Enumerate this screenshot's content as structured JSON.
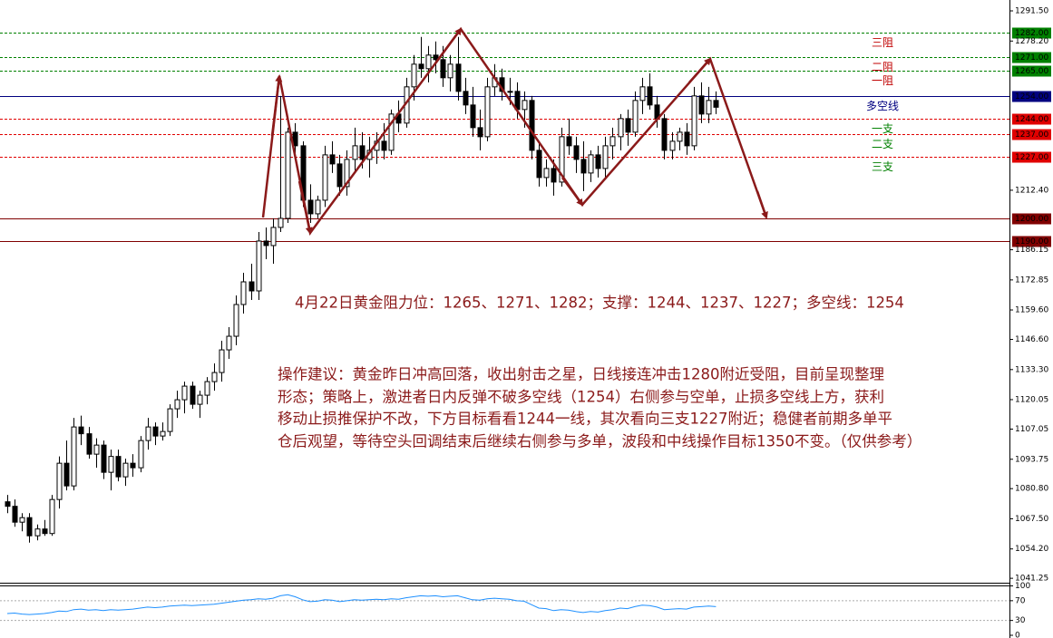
{
  "chart_data": {
    "type": "candlestick",
    "candles": [
      [
        1075,
        1078,
        1070,
        1073
      ],
      [
        1073,
        1076,
        1064,
        1066
      ],
      [
        1066,
        1070,
        1062,
        1068
      ],
      [
        1068,
        1070,
        1057,
        1060
      ],
      [
        1060,
        1065,
        1058,
        1063
      ],
      [
        1063,
        1067,
        1060,
        1061
      ],
      [
        1061,
        1078,
        1060,
        1076
      ],
      [
        1076,
        1095,
        1072,
        1092
      ],
      [
        1092,
        1102,
        1080,
        1082
      ],
      [
        1082,
        1112,
        1080,
        1108
      ],
      [
        1108,
        1113,
        1100,
        1105
      ],
      [
        1105,
        1108,
        1094,
        1096
      ],
      [
        1096,
        1103,
        1090,
        1100
      ],
      [
        1100,
        1102,
        1085,
        1088
      ],
      [
        1088,
        1098,
        1080,
        1095
      ],
      [
        1095,
        1098,
        1084,
        1086
      ],
      [
        1086,
        1094,
        1082,
        1092
      ],
      [
        1092,
        1096,
        1086,
        1090
      ],
      [
        1090,
        1104,
        1088,
        1102
      ],
      [
        1102,
        1112,
        1098,
        1108
      ],
      [
        1108,
        1110,
        1100,
        1104
      ],
      [
        1104,
        1110,
        1102,
        1106
      ],
      [
        1106,
        1118,
        1104,
        1116
      ],
      [
        1116,
        1124,
        1112,
        1120
      ],
      [
        1120,
        1128,
        1114,
        1126
      ],
      [
        1126,
        1128,
        1116,
        1118
      ],
      [
        1118,
        1124,
        1112,
        1122
      ],
      [
        1122,
        1130,
        1118,
        1128
      ],
      [
        1128,
        1136,
        1124,
        1132
      ],
      [
        1132,
        1146,
        1128,
        1142
      ],
      [
        1142,
        1152,
        1138,
        1148
      ],
      [
        1148,
        1166,
        1144,
        1162
      ],
      [
        1162,
        1176,
        1158,
        1172
      ],
      [
        1172,
        1180,
        1164,
        1168
      ],
      [
        1168,
        1194,
        1164,
        1190
      ],
      [
        1190,
        1196,
        1182,
        1188
      ],
      [
        1188,
        1200,
        1180,
        1196
      ],
      [
        1196,
        1254,
        1194,
        1200
      ],
      [
        1200,
        1240,
        1198,
        1238
      ],
      [
        1238,
        1242,
        1226,
        1232
      ],
      [
        1232,
        1234,
        1205,
        1208
      ],
      [
        1208,
        1215,
        1198,
        1202
      ],
      [
        1202,
        1210,
        1200,
        1208
      ],
      [
        1208,
        1232,
        1205,
        1228
      ],
      [
        1228,
        1234,
        1220,
        1224
      ],
      [
        1224,
        1228,
        1210,
        1214
      ],
      [
        1214,
        1230,
        1210,
        1226
      ],
      [
        1226,
        1240,
        1220,
        1232
      ],
      [
        1232,
        1238,
        1222,
        1226
      ],
      [
        1226,
        1236,
        1218,
        1230
      ],
      [
        1230,
        1238,
        1224,
        1234
      ],
      [
        1234,
        1242,
        1226,
        1230
      ],
      [
        1230,
        1248,
        1228,
        1246
      ],
      [
        1246,
        1252,
        1238,
        1242
      ],
      [
        1242,
        1262,
        1240,
        1258
      ],
      [
        1258,
        1272,
        1252,
        1268
      ],
      [
        1268,
        1280,
        1262,
        1266
      ],
      [
        1266,
        1276,
        1260,
        1272
      ],
      [
        1272,
        1278,
        1264,
        1270
      ],
      [
        1270,
        1276,
        1258,
        1262
      ],
      [
        1262,
        1272,
        1256,
        1268
      ],
      [
        1268,
        1280,
        1252,
        1256
      ],
      [
        1256,
        1262,
        1246,
        1250
      ],
      [
        1250,
        1258,
        1236,
        1240
      ],
      [
        1240,
        1248,
        1230,
        1236
      ],
      [
        1236,
        1262,
        1234,
        1258
      ],
      [
        1258,
        1268,
        1254,
        1262
      ],
      [
        1262,
        1266,
        1252,
        1256
      ],
      [
        1256,
        1262,
        1250,
        1256
      ],
      [
        1256,
        1260,
        1244,
        1248
      ],
      [
        1248,
        1256,
        1240,
        1252
      ],
      [
        1252,
        1254,
        1226,
        1230
      ],
      [
        1230,
        1234,
        1214,
        1218
      ],
      [
        1218,
        1226,
        1214,
        1222
      ],
      [
        1222,
        1226,
        1210,
        1216
      ],
      [
        1216,
        1240,
        1214,
        1236
      ],
      [
        1236,
        1244,
        1228,
        1232
      ],
      [
        1232,
        1236,
        1220,
        1226
      ],
      [
        1226,
        1234,
        1212,
        1220
      ],
      [
        1220,
        1230,
        1216,
        1228
      ],
      [
        1228,
        1232,
        1218,
        1222
      ],
      [
        1222,
        1236,
        1218,
        1232
      ],
      [
        1232,
        1240,
        1226,
        1236
      ],
      [
        1236,
        1246,
        1230,
        1244
      ],
      [
        1244,
        1248,
        1232,
        1238
      ],
      [
        1238,
        1256,
        1236,
        1252
      ],
      [
        1252,
        1262,
        1246,
        1258
      ],
      [
        1258,
        1264,
        1248,
        1250
      ],
      [
        1250,
        1254,
        1240,
        1244
      ],
      [
        1244,
        1246,
        1226,
        1230
      ],
      [
        1230,
        1238,
        1226,
        1234
      ],
      [
        1234,
        1240,
        1230,
        1238
      ],
      [
        1238,
        1242,
        1228,
        1232
      ],
      [
        1232,
        1258,
        1230,
        1254
      ],
      [
        1254,
        1260,
        1242,
        1246
      ],
      [
        1246,
        1258,
        1242,
        1252
      ],
      [
        1252,
        1256,
        1246,
        1249
      ]
    ],
    "bull_color": "#ffffff",
    "bear_color": "#000000",
    "ylim": [
      1039.3,
      1296.3
    ],
    "yticks": [
      {
        "value": 1291.5,
        "label": "1291.50"
      },
      {
        "value": 1278.2,
        "label": "1278.20"
      },
      {
        "value": 1212.4,
        "label": "1212.40"
      },
      {
        "value": 1186.15,
        "label": "1186.15"
      },
      {
        "value": 1172.85,
        "label": "1172.85"
      },
      {
        "value": 1159.6,
        "label": "1159.60"
      },
      {
        "value": 1146.6,
        "label": "1146.60"
      },
      {
        "value": 1133.3,
        "label": "1133.30"
      },
      {
        "value": 1120.05,
        "label": "1120.05"
      },
      {
        "value": 1107.05,
        "label": "1107.05"
      },
      {
        "value": 1093.75,
        "label": "1093.75"
      },
      {
        "value": 1080.8,
        "label": "1080.80"
      },
      {
        "value": 1067.5,
        "label": "1067.50"
      },
      {
        "value": 1054.2,
        "label": "1054.20"
      },
      {
        "value": 1041.25,
        "label": "1041.25"
      }
    ],
    "levels": [
      {
        "value": 1282,
        "label": "1282.00",
        "name": "三阻",
        "color": "#008000",
        "name_color": "#c00000",
        "style": "dashed"
      },
      {
        "value": 1271,
        "label": "1271.00",
        "name": "二阻",
        "color": "#008000",
        "name_color": "#c00000",
        "style": "dashed"
      },
      {
        "value": 1265,
        "label": "1265.00",
        "name": "一阻",
        "color": "#008000",
        "name_color": "#c00000",
        "style": "dashed"
      },
      {
        "value": 1254,
        "label": "1254.00",
        "name": "多空线",
        "color": "#000080",
        "name_color": "#000080",
        "style": "solid"
      },
      {
        "value": 1244,
        "label": "1244.00",
        "name": "一支",
        "color": "#e00000",
        "name_color": "#008000",
        "style": "dashed"
      },
      {
        "value": 1237,
        "label": "1237.00",
        "name": "二支",
        "color": "#e00000",
        "name_color": "#008000",
        "style": "dashed"
      },
      {
        "value": 1227,
        "label": "1227.00",
        "name": "三支",
        "color": "#e00000",
        "name_color": "#008000",
        "style": "dashed"
      },
      {
        "value": 1200,
        "label": "1200.00",
        "color": "#800000",
        "style": "solid"
      },
      {
        "value": 1190,
        "label": "1190.00",
        "color": "#800000",
        "style": "solid"
      }
    ],
    "headline": "4月22日黄金阻力位：1265、1271、1282；支撑：1244、1237、1227；多空线：1254",
    "advice": [
      "操作建议：黄金昨日冲高回落，收出射击之星，日线接连冲击1280附近受阻，目前呈现整理",
      "形态；策略上，激进者日内反弹不破多空线（1254）右侧参与空单，止损多空线上方，获利",
      "移动止损推保护不改，下方目标看看1244一线，其次看向三支1227附近；稳健者前期多单平",
      "仓后观望，等待空头回调结束后继续右侧参与多单，波段和中线操作目标1350不变。（仅供参考）"
    ],
    "indicator": {
      "color": "#1e90ff",
      "ylim": [
        0,
        100
      ],
      "yticks": [
        100,
        70,
        30,
        0
      ],
      "levels": [
        70,
        30
      ],
      "values": [
        44,
        45,
        43,
        42,
        43,
        44,
        46,
        49,
        48,
        52,
        53,
        51,
        52,
        50,
        52,
        51,
        52,
        53,
        55,
        57,
        56,
        57,
        59,
        60,
        61,
        60,
        61,
        62,
        63,
        65,
        67,
        69,
        71,
        72,
        74,
        73,
        75,
        80,
        82,
        78,
        72,
        68,
        69,
        72,
        71,
        68,
        70,
        72,
        71,
        72,
        73,
        72,
        74,
        73,
        76,
        78,
        80,
        79,
        80,
        78,
        79,
        80,
        76,
        72,
        71,
        74,
        75,
        74,
        73,
        70,
        69,
        62,
        55,
        54,
        50,
        52,
        51,
        48,
        46,
        48,
        47,
        50,
        52,
        55,
        54,
        58,
        61,
        60,
        57,
        52,
        53,
        54,
        53,
        57,
        58,
        59,
        58
      ]
    }
  }
}
